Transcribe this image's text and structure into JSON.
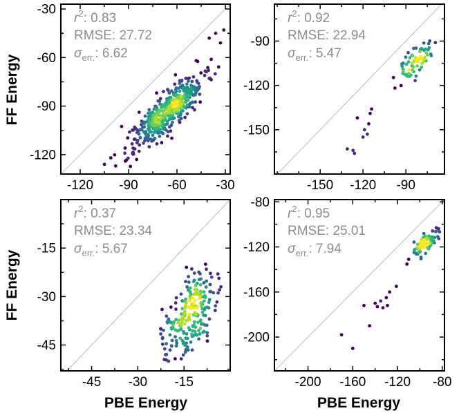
{
  "figure": {
    "ylabel": "FF Energy",
    "xlabel": "PBE Energy"
  },
  "stat_labels": {
    "r2_base": "r",
    "r2_sup": "2",
    "rmse": "RMSE:",
    "sigma_base": "σ",
    "sigma_sub": "err."
  },
  "colors": {
    "stats_text": "#8c8c8c",
    "diagonal": "#c0c0c0",
    "axes": "#000000",
    "viridis": [
      "#440154",
      "#482878",
      "#3e4989",
      "#31688e",
      "#26828e",
      "#1f9e89",
      "#35b779",
      "#6ece58",
      "#b5de2b",
      "#fde725"
    ]
  },
  "chart_data": [
    {
      "type": "scatter",
      "position": "top-left",
      "xlim": [
        -132,
        -27
      ],
      "ylim": [
        -132,
        -27
      ],
      "xticks": [
        -120,
        -90,
        -60,
        -30
      ],
      "yticks": [
        -120,
        -90,
        -60,
        -30
      ],
      "xticklabels": [
        "-120",
        "-90",
        "-60",
        "-30"
      ],
      "yticklabels": [
        "-120",
        "-90",
        "-60",
        "-30"
      ],
      "xlabel": "",
      "ylabel": "FF Energy",
      "stats": {
        "r2": "0.83",
        "rmse": "27.72",
        "sigma": "6.62"
      },
      "cloud": {
        "n": 480,
        "cx": -66,
        "cy": -93,
        "major": 15,
        "minor": 4.6,
        "angle": 0.79,
        "seed": 11
      },
      "outliers": [
        [
          -105,
          -126
        ],
        [
          -98,
          -127
        ],
        [
          -92,
          -124
        ],
        [
          -85,
          -123
        ],
        [
          -101,
          -122
        ],
        [
          -40,
          -48
        ],
        [
          -36,
          -45
        ],
        [
          -31,
          -43
        ],
        [
          -33,
          -51
        ]
      ]
    },
    {
      "type": "scatter",
      "position": "top-right",
      "xlim": [
        -182,
        -63
      ],
      "ylim": [
        -180,
        -65
      ],
      "xticks": [
        -150,
        -120,
        -90
      ],
      "yticks": [
        -150,
        -120,
        -90
      ],
      "xticklabels": [
        "-150",
        "-120",
        "-90"
      ],
      "yticklabels": [
        "-150",
        "-120",
        "-90"
      ],
      "xlabel": "",
      "ylabel": "",
      "stats": {
        "r2": "0.92",
        "rmse": "22.94",
        "sigma": "5.47"
      },
      "cloud": {
        "n": 75,
        "cx": -84,
        "cy": -105,
        "major": 8,
        "minor": 3.2,
        "angle": 0.85,
        "seed": 23
      },
      "outliers": [
        [
          -131,
          -163
        ],
        [
          -126,
          -166
        ],
        [
          -127,
          -164
        ],
        [
          -120,
          -155
        ],
        [
          -117,
          -153
        ],
        [
          -119,
          -150
        ],
        [
          -116,
          -146
        ],
        [
          -115,
          -139
        ],
        [
          -114,
          -136
        ],
        [
          -124,
          -142
        ]
      ]
    },
    {
      "type": "scatter",
      "position": "bottom-left",
      "xlim": [
        -55,
        0
      ],
      "ylim": [
        -53,
        0
      ],
      "xticks": [
        -45,
        -30,
        -15
      ],
      "yticks": [
        -45,
        -30,
        -15
      ],
      "xticklabels": [
        "-45",
        "-30",
        "-15"
      ],
      "yticklabels": [
        "-45",
        "-30",
        "-15"
      ],
      "xlabel": "PBE Energy",
      "ylabel": "FF Energy",
      "stats": {
        "r2": "0.37",
        "rmse": "23.34",
        "sigma": "5.67"
      },
      "cloud": {
        "n": 230,
        "cx": -13.5,
        "cy": -36,
        "major": 6.5,
        "minor": 3.6,
        "angle": 1.18,
        "seed": 37
      },
      "outliers": [
        [
          -22,
          -43
        ],
        [
          -21,
          -48
        ],
        [
          -20,
          -50
        ],
        [
          -8,
          -20
        ],
        [
          -6,
          -24
        ],
        [
          -4,
          -23
        ],
        [
          -3,
          -27
        ]
      ]
    },
    {
      "type": "scatter",
      "position": "bottom-right",
      "xlim": [
        -230,
        -78
      ],
      "ylim": [
        -230,
        -78
      ],
      "xticks": [
        -200,
        -160,
        -120,
        -80
      ],
      "yticks": [
        -200,
        -160,
        -120,
        -80
      ],
      "xticklabels": [
        "-200",
        "-160",
        "-120",
        "-80"
      ],
      "yticklabels": [
        "-200",
        "-160",
        "-120",
        "-80"
      ],
      "xlabel": "PBE Energy",
      "ylabel": "",
      "stats": {
        "r2": "0.95",
        "rmse": "25.01",
        "sigma": "7.94"
      },
      "cloud": {
        "n": 85,
        "cx": -96,
        "cy": -117,
        "major": 9,
        "minor": 3,
        "angle": 0.8,
        "seed": 53
      },
      "outliers": [
        [
          -170,
          -198
        ],
        [
          -160,
          -210
        ],
        [
          -145,
          -190
        ],
        [
          -140,
          -170
        ],
        [
          -135,
          -168
        ],
        [
          -130,
          -165
        ],
        [
          -127,
          -160
        ],
        [
          -121,
          -155
        ],
        [
          -138,
          -173
        ],
        [
          -133,
          -174
        ],
        [
          -129,
          -172
        ],
        [
          -150,
          -172
        ]
      ]
    }
  ]
}
